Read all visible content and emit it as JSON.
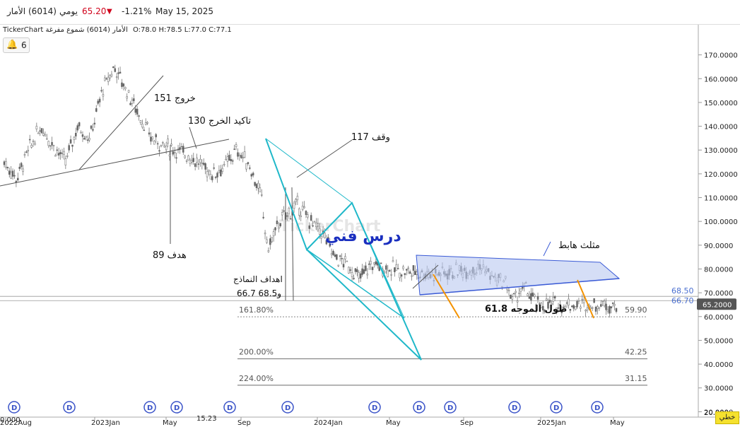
{
  "header": {
    "name": "الأمار",
    "code": "(6014)",
    "period": "يومي",
    "price": "65.20",
    "change": "-1.21%",
    "date": "May 15, 2025",
    "down_color": "#d0021b"
  },
  "info": {
    "source": "TickerChart الأمار (6014) شموع مفرغة",
    "ohlc": "O:78.0 H:78.5 L:77.0 C:77.1"
  },
  "alerts": {
    "count": "6",
    "icon": "bell-icon"
  },
  "watermark": "TickerChart",
  "lang_button": "خطي",
  "chart_data": {
    "type": "candlestick",
    "y_axis": {
      "min": 20,
      "max": 175,
      "ticks": [
        "170.0000",
        "160.0000",
        "150.0000",
        "140.0000",
        "130.0000",
        "120.0000",
        "110.0000",
        "100.0000",
        "90.0000",
        "80.0000",
        "70.0000",
        "60.0000",
        "50.0000",
        "40.0000",
        "30.0000",
        "20.0000"
      ],
      "tick_values": [
        170,
        160,
        150,
        140,
        130,
        120,
        110,
        100,
        90,
        80,
        70,
        60,
        50,
        40,
        30,
        20
      ]
    },
    "x_axis": {
      "labels": [
        "2022Aug",
        "2023Jan",
        "May",
        "Sep",
        "2024Jan",
        "May",
        "Sep",
        "2025Jan",
        "May"
      ]
    },
    "price_path": [
      [
        0,
        125
      ],
      [
        0.02,
        118
      ],
      [
        0.04,
        130
      ],
      [
        0.06,
        140
      ],
      [
        0.08,
        132
      ],
      [
        0.1,
        125
      ],
      [
        0.12,
        140
      ],
      [
        0.14,
        135
      ],
      [
        0.16,
        155
      ],
      [
        0.18,
        165
      ],
      [
        0.2,
        155
      ],
      [
        0.22,
        145
      ],
      [
        0.24,
        135
      ],
      [
        0.26,
        132
      ],
      [
        0.28,
        130
      ],
      [
        0.3,
        128
      ],
      [
        0.32,
        124
      ],
      [
        0.34,
        120
      ],
      [
        0.36,
        123
      ],
      [
        0.38,
        130
      ],
      [
        0.4,
        124
      ],
      [
        0.42,
        110
      ],
      [
        0.43,
        88
      ],
      [
        0.45,
        100
      ],
      [
        0.48,
        107
      ],
      [
        0.5,
        100
      ],
      [
        0.52,
        95
      ],
      [
        0.54,
        85
      ],
      [
        0.56,
        82
      ],
      [
        0.58,
        76
      ],
      [
        0.6,
        82
      ],
      [
        0.63,
        80
      ],
      [
        0.66,
        79
      ],
      [
        0.7,
        78
      ],
      [
        0.74,
        79
      ],
      [
        0.78,
        81
      ],
      [
        0.8,
        76
      ],
      [
        0.82,
        74
      ],
      [
        0.83,
        67
      ],
      [
        0.85,
        72
      ],
      [
        0.87,
        65
      ]
    ],
    "last_price": "65.2000",
    "price_levels": [
      {
        "label": "68.50",
        "value": 68.5
      },
      {
        "label": "66.70",
        "value": 66.7
      }
    ],
    "fib_levels": [
      {
        "pct": "161.80%",
        "value": 59.9,
        "label": "59.90"
      },
      {
        "pct": "200.00%",
        "value": 42.25,
        "label": "42.25"
      },
      {
        "pct": "224.00%",
        "value": 31.15,
        "label": "31.15"
      }
    ],
    "annotations": [
      "151 خروج",
      "130 تاكيد الخرج",
      "وقف 117",
      "هدف 89",
      "اهداف النماذج",
      "66.7 و68.5",
      "مثلث هابط",
      "61.8 طول الموجه",
      "درس فني"
    ],
    "bottom_labels": [
      "0.000",
      "15.23",
      "20.000"
    ],
    "dividend_marker": "D",
    "colors": {
      "candle": "#666666",
      "pattern": "#1fb8c9",
      "triangle_fill": "#b9c8f0",
      "triangle_line": "#3b5bd6",
      "fib_line": "#888888",
      "wave": "#f39200",
      "title_ink": "#1a2fbf"
    }
  }
}
